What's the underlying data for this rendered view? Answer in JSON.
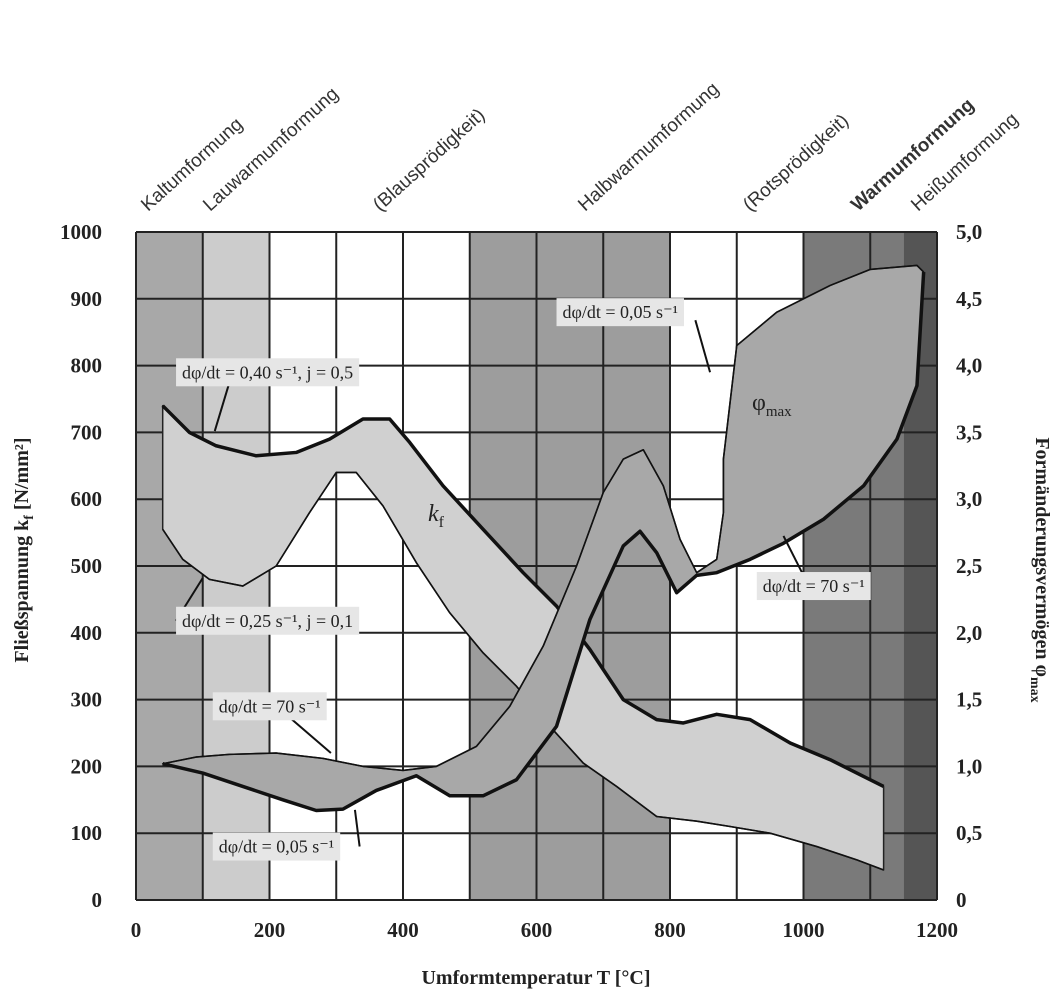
{
  "chart_data": {
    "type": "area",
    "xlabel": "Umformtemperatur T [°C]",
    "ylabel_left": "Fließspannung k",
    "ylabel_left_sub": "f",
    "ylabel_left_unit": " [N/mm²]",
    "ylabel_right": "Formänderungsvermögen φ",
    "ylabel_right_sub": "max",
    "xlim": [
      0,
      1200
    ],
    "ylim_left": [
      0,
      1000
    ],
    "ylim_right": [
      0,
      5.0
    ],
    "grid": true,
    "x_ticks": [
      "0",
      "200",
      "400",
      "600",
      "800",
      "1000",
      "1200"
    ],
    "y_ticks_left": [
      "0",
      "100",
      "200",
      "300",
      "400",
      "500",
      "600",
      "700",
      "800",
      "900",
      "1000"
    ],
    "y_ticks_right": [
      "0",
      "0,5",
      "1,0",
      "1,5",
      "2,0",
      "2,5",
      "3,0",
      "3,5",
      "4,0",
      "4,5",
      "5,0"
    ],
    "regions": [
      {
        "label": "Kaltumformung",
        "x": [
          0,
          100
        ],
        "shade": "#a8a8a8"
      },
      {
        "label": "Lauwarmumformung",
        "x": [
          100,
          200
        ],
        "shade": "#cccccc"
      },
      {
        "label": "(Blausprödigkeit)",
        "x": [
          200,
          500
        ],
        "shade": "#ffffff"
      },
      {
        "label": "Halbwarmumformung",
        "x": [
          500,
          800
        ],
        "shade": "#9d9d9d"
      },
      {
        "label": "(Rotsprödigkeit)",
        "x": [
          800,
          1000
        ],
        "shade": "#ffffff"
      },
      {
        "label": "Warmumformung",
        "x": [
          1000,
          1150
        ],
        "shade": "#7a7a7a",
        "bold": true
      },
      {
        "label": "Heißumformung",
        "x": [
          1150,
          1200
        ],
        "shade": "#555555"
      }
    ],
    "bands": [
      {
        "name": "k",
        "name_sub": "f",
        "fill": "#d0d0d0",
        "axis": "left",
        "upper": [
          [
            40,
            740
          ],
          [
            80,
            700
          ],
          [
            120,
            680
          ],
          [
            180,
            665
          ],
          [
            240,
            670
          ],
          [
            290,
            690
          ],
          [
            340,
            720
          ],
          [
            380,
            720
          ],
          [
            410,
            685
          ],
          [
            460,
            620
          ],
          [
            520,
            555
          ],
          [
            580,
            490
          ],
          [
            630,
            440
          ],
          [
            680,
            375
          ],
          [
            730,
            300
          ],
          [
            780,
            270
          ],
          [
            820,
            265
          ],
          [
            870,
            278
          ],
          [
            920,
            270
          ],
          [
            980,
            235
          ],
          [
            1040,
            210
          ],
          [
            1090,
            185
          ],
          [
            1120,
            170
          ]
        ],
        "lower": [
          [
            40,
            555
          ],
          [
            70,
            510
          ],
          [
            110,
            480
          ],
          [
            160,
            470
          ],
          [
            210,
            500
          ],
          [
            260,
            580
          ],
          [
            300,
            640
          ],
          [
            330,
            640
          ],
          [
            370,
            590
          ],
          [
            420,
            505
          ],
          [
            470,
            430
          ],
          [
            520,
            370
          ],
          [
            570,
            320
          ],
          [
            620,
            260
          ],
          [
            670,
            205
          ],
          [
            720,
            170
          ],
          [
            780,
            125
          ],
          [
            840,
            118
          ],
          [
            890,
            110
          ],
          [
            950,
            100
          ],
          [
            1020,
            80
          ],
          [
            1080,
            60
          ],
          [
            1120,
            45
          ]
        ],
        "style_upper": "thick",
        "style_lower": "thin"
      },
      {
        "name": "φ",
        "name_sub": "max",
        "fill": "#a8a8a8",
        "axis": "right",
        "upper": [
          [
            40,
            1.02
          ],
          [
            90,
            1.07
          ],
          [
            140,
            1.09
          ],
          [
            210,
            1.1
          ],
          [
            280,
            1.06
          ],
          [
            340,
            1.0
          ],
          [
            400,
            0.97
          ],
          [
            450,
            1.0
          ],
          [
            510,
            1.15
          ],
          [
            560,
            1.45
          ],
          [
            610,
            1.9
          ],
          [
            660,
            2.5
          ],
          [
            700,
            3.05
          ],
          [
            730,
            3.3
          ],
          [
            760,
            3.37
          ],
          [
            790,
            3.1
          ],
          [
            815,
            2.7
          ],
          [
            840,
            2.45
          ],
          [
            870,
            2.55
          ],
          [
            880,
            2.9
          ],
          [
            880,
            3.3
          ],
          [
            900,
            4.15
          ],
          [
            960,
            4.4
          ],
          [
            1040,
            4.6
          ],
          [
            1100,
            4.72
          ],
          [
            1170,
            4.75
          ],
          [
            1180,
            4.7
          ]
        ],
        "lower": [
          [
            40,
            1.02
          ],
          [
            100,
            0.95
          ],
          [
            160,
            0.85
          ],
          [
            220,
            0.75
          ],
          [
            270,
            0.67
          ],
          [
            310,
            0.68
          ],
          [
            360,
            0.82
          ],
          [
            420,
            0.93
          ],
          [
            470,
            0.78
          ],
          [
            520,
            0.78
          ],
          [
            570,
            0.9
          ],
          [
            630,
            1.3
          ],
          [
            680,
            2.1
          ],
          [
            730,
            2.65
          ],
          [
            755,
            2.76
          ],
          [
            780,
            2.6
          ],
          [
            810,
            2.3
          ],
          [
            840,
            2.43
          ],
          [
            870,
            2.45
          ],
          [
            920,
            2.55
          ],
          [
            970,
            2.67
          ],
          [
            1030,
            2.85
          ],
          [
            1090,
            3.1
          ],
          [
            1140,
            3.45
          ],
          [
            1170,
            3.85
          ],
          [
            1180,
            4.7
          ]
        ],
        "style_upper": "thin",
        "style_lower": "thick"
      }
    ],
    "annotations": [
      {
        "text": "dφ/dt = 0,40 s⁻¹, j = 0,5",
        "x": 60,
        "y": 790
      },
      {
        "text": "dφ/dt = 0,25 s⁻¹, j = 0,1",
        "x": 60,
        "y": 418
      },
      {
        "text": "dφ/dt = 70 s⁻¹",
        "x": 115,
        "y": 290
      },
      {
        "text": "dφ/dt = 0,05 s⁻¹",
        "x": 115,
        "y": 80
      },
      {
        "text": "dφ/dt = 0,05 s⁻¹",
        "x": 630,
        "y": 880
      },
      {
        "text": "dφ/dt = 70 s⁻¹",
        "x": 930,
        "y": 470
      }
    ]
  }
}
